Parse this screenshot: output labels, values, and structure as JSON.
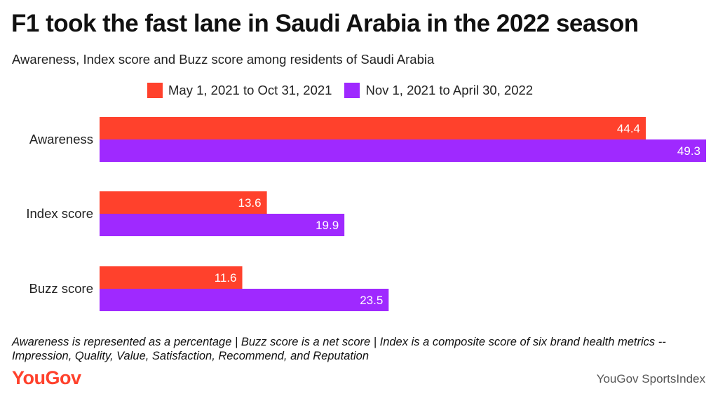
{
  "header": {
    "title": "F1 took the fast lane in Saudi Arabia in the 2022 season",
    "subtitle": "Awareness, Index score and Buzz score among residents of Saudi Arabia"
  },
  "footer": {
    "note": "Awareness is represented as a percentage | Buzz score is a net score | Index is a composite score of six brand health metrics -- Impression, Quality, Value, Satisfaction, Recommend, and Reputation",
    "logo": "YouGov",
    "source": "YouGov SportsIndex"
  },
  "colors": {
    "series1": "#ff412c",
    "series2": "#9f29ff",
    "logo": "#ff412c"
  },
  "chart_data": {
    "type": "bar",
    "orientation": "horizontal",
    "categories": [
      "Awareness",
      "Index score",
      "Buzz score"
    ],
    "series": [
      {
        "name": "May 1, 2021 to Oct 31, 2021",
        "values": [
          44.4,
          13.6,
          11.6
        ]
      },
      {
        "name": "Nov 1, 2021 to April 30, 2022",
        "values": [
          49.3,
          19.9,
          23.5
        ]
      }
    ],
    "xlim": [
      0,
      49.3
    ],
    "grid": false,
    "legend": "top"
  }
}
